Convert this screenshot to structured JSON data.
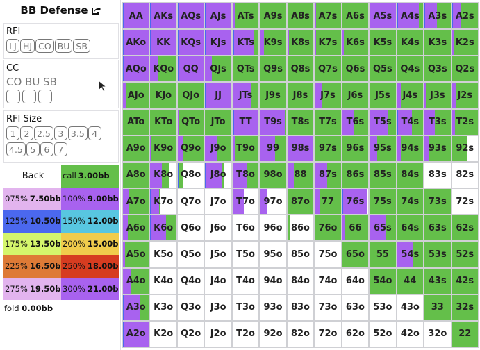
{
  "title": "BB Defense",
  "rfi": {
    "label": "RFI",
    "options": [
      "LJ",
      "HJ",
      "CO",
      "BU",
      "SB"
    ]
  },
  "cc": {
    "label": "CC",
    "positions": "CO BU SB"
  },
  "rfi_size": {
    "label": "RFI Size",
    "options": [
      "1",
      "2",
      "2.5",
      "3",
      "3.5",
      "4",
      "4.5",
      "5",
      "6",
      "7"
    ]
  },
  "legend": {
    "back": "Back",
    "items": [
      {
        "pct": "call",
        "bb": "3.00bb",
        "color": "#64bf4a"
      },
      {
        "pct": "075%",
        "bb": "7.50bb",
        "color": "#e2b4ee"
      },
      {
        "pct": "100%",
        "bb": "9.00bb",
        "color": "#a862ef"
      },
      {
        "pct": "125%",
        "bb": "10.50bb",
        "color": "#4b68ee"
      },
      {
        "pct": "150%",
        "bb": "12.00bb",
        "color": "#58c6e0"
      },
      {
        "pct": "175%",
        "bb": "13.50bb",
        "color": "#d4f56c"
      },
      {
        "pct": "200%",
        "bb": "15.00bb",
        "color": "#f0cc4c"
      },
      {
        "pct": "225%",
        "bb": "16.50bb",
        "color": "#de7a36"
      },
      {
        "pct": "250%",
        "bb": "18.00bb",
        "color": "#d63c20"
      },
      {
        "pct": "275%",
        "bb": "19.50bb",
        "color": "#e2b4ee"
      },
      {
        "pct": "300%",
        "bb": "21.00bb",
        "color": "#a862ef"
      }
    ],
    "fold": {
      "pct": "fold",
      "bb": "0.00bb"
    }
  },
  "colors": {
    "raise_125": "#4b68ee",
    "raise_100": "#a862ef",
    "call": "#64bf4a",
    "fold": "#ffffff"
  },
  "grid_format": "hand, 125% raise %, 100% raise %, call %",
  "grid": [
    [
      [
        "AA",
        3,
        97,
        0
      ],
      [
        "AKs",
        3,
        97,
        0
      ],
      [
        "AQs",
        3,
        97,
        0
      ],
      [
        "AJs",
        2,
        95,
        3
      ],
      [
        "ATs",
        0,
        12,
        88
      ],
      [
        "A9s",
        0,
        0,
        100
      ],
      [
        "A8s",
        0,
        0,
        100
      ],
      [
        "A7s",
        0,
        5,
        95
      ],
      [
        "A6s",
        0,
        0,
        100
      ],
      [
        "A5s",
        3,
        97,
        0
      ],
      [
        "A4s",
        3,
        80,
        17
      ],
      [
        "A3s",
        3,
        45,
        52
      ],
      [
        "A2s",
        3,
        30,
        67
      ]
    ],
    [
      [
        "AKo",
        5,
        95,
        0
      ],
      [
        "KK",
        5,
        95,
        0
      ],
      [
        "KQs",
        3,
        97,
        0
      ],
      [
        "KJs",
        5,
        92,
        3
      ],
      [
        "KTs",
        5,
        75,
        20
      ],
      [
        "K9s",
        0,
        15,
        85
      ],
      [
        "K8s",
        0,
        5,
        95
      ],
      [
        "K7s",
        0,
        5,
        95
      ],
      [
        "K6s",
        0,
        5,
        95
      ],
      [
        "K5s",
        0,
        0,
        100
      ],
      [
        "K4s",
        0,
        0,
        100
      ],
      [
        "K3s",
        0,
        0,
        100
      ],
      [
        "K2s",
        0,
        8,
        92
      ]
    ],
    [
      [
        "AQo",
        5,
        95,
        0
      ],
      [
        "KQo",
        0,
        30,
        70
      ],
      [
        "QQ",
        5,
        95,
        0
      ],
      [
        "QJs",
        0,
        25,
        75
      ],
      [
        "QTs",
        0,
        0,
        100
      ],
      [
        "Q9s",
        0,
        0,
        100
      ],
      [
        "Q8s",
        0,
        0,
        100
      ],
      [
        "Q7s",
        0,
        0,
        100
      ],
      [
        "Q6s",
        0,
        0,
        100
      ],
      [
        "Q5s",
        0,
        0,
        100
      ],
      [
        "Q4s",
        0,
        0,
        100
      ],
      [
        "Q3s",
        0,
        0,
        100
      ],
      [
        "Q2s",
        0,
        0,
        100
      ]
    ],
    [
      [
        "AJo",
        0,
        10,
        90
      ],
      [
        "KJo",
        0,
        0,
        100
      ],
      [
        "QJo",
        0,
        0,
        100
      ],
      [
        "JJ",
        5,
        95,
        0
      ],
      [
        "JTs",
        3,
        70,
        27
      ],
      [
        "J9s",
        0,
        3,
        97
      ],
      [
        "J8s",
        0,
        0,
        100
      ],
      [
        "J7s",
        0,
        25,
        75
      ],
      [
        "J6s",
        0,
        0,
        100
      ],
      [
        "J5s",
        0,
        0,
        100
      ],
      [
        "J4s",
        0,
        15,
        85
      ],
      [
        "J3s",
        0,
        5,
        95
      ],
      [
        "J2s",
        0,
        15,
        85
      ]
    ],
    [
      [
        "ATo",
        0,
        0,
        100
      ],
      [
        "KTo",
        0,
        0,
        100
      ],
      [
        "QTo",
        0,
        3,
        97
      ],
      [
        "JTo",
        0,
        0,
        100
      ],
      [
        "TT",
        5,
        95,
        0
      ],
      [
        "T9s",
        3,
        92,
        5
      ],
      [
        "T8s",
        0,
        3,
        97
      ],
      [
        "T7s",
        0,
        0,
        100
      ],
      [
        "T6s",
        0,
        45,
        55
      ],
      [
        "T5s",
        3,
        70,
        27
      ],
      [
        "T4s",
        3,
        55,
        42
      ],
      [
        "T3s",
        0,
        40,
        60
      ],
      [
        "T2s",
        0,
        12,
        88
      ]
    ],
    [
      [
        "A9o",
        0,
        0,
        100
      ],
      [
        "K9o",
        0,
        3,
        97
      ],
      [
        "Q9o",
        0,
        20,
        80
      ],
      [
        "J9o",
        0,
        45,
        55
      ],
      [
        "T9o",
        0,
        12,
        88
      ],
      [
        "99",
        3,
        55,
        42
      ],
      [
        "98s",
        3,
        97,
        0
      ],
      [
        "97s",
        0,
        0,
        100
      ],
      [
        "96s",
        0,
        0,
        100
      ],
      [
        "95s",
        0,
        30,
        70
      ],
      [
        "94s",
        0,
        15,
        85
      ],
      [
        "93s",
        0,
        15,
        85
      ],
      [
        "92s",
        0,
        0,
        60
      ]
    ],
    [
      [
        "A8o",
        0,
        0,
        100
      ],
      [
        "K8o",
        0,
        45,
        28
      ],
      [
        "Q8o",
        2,
        0,
        20
      ],
      [
        "J8o",
        3,
        60,
        10
      ],
      [
        "T8o",
        3,
        50,
        47
      ],
      [
        "98o",
        0,
        0,
        100
      ],
      [
        "88",
        0,
        25,
        75
      ],
      [
        "87s",
        3,
        45,
        52
      ],
      [
        "86s",
        0,
        0,
        100
      ],
      [
        "85s",
        0,
        0,
        100
      ],
      [
        "84s",
        0,
        0,
        100
      ],
      [
        "83s",
        0,
        0,
        0
      ],
      [
        "82s",
        0,
        0,
        0
      ]
    ],
    [
      [
        "A7o",
        0,
        25,
        75
      ],
      [
        "K7o",
        3,
        30,
        7
      ],
      [
        "Q7o",
        0,
        0,
        0
      ],
      [
        "J7o",
        0,
        0,
        0
      ],
      [
        "T7o",
        3,
        40,
        0
      ],
      [
        "97o",
        0,
        25,
        0
      ],
      [
        "87o",
        0,
        0,
        100
      ],
      [
        "77",
        0,
        20,
        80
      ],
      [
        "76s",
        3,
        95,
        0
      ],
      [
        "75s",
        0,
        0,
        100
      ],
      [
        "74s",
        0,
        0,
        100
      ],
      [
        "73s",
        0,
        0,
        100
      ],
      [
        "72s",
        0,
        0,
        0
      ]
    ],
    [
      [
        "A6o",
        0,
        20,
        80
      ],
      [
        "K6o",
        3,
        57,
        37
      ],
      [
        "Q6o",
        0,
        0,
        0
      ],
      [
        "J6o",
        0,
        0,
        0
      ],
      [
        "T6o",
        0,
        0,
        0
      ],
      [
        "96o",
        0,
        0,
        0
      ],
      [
        "86o",
        0,
        0,
        12
      ],
      [
        "76o",
        0,
        0,
        100
      ],
      [
        "66",
        0,
        10,
        90
      ],
      [
        "65s",
        3,
        57,
        40
      ],
      [
        "64s",
        0,
        0,
        100
      ],
      [
        "63s",
        0,
        0,
        100
      ],
      [
        "62s",
        0,
        0,
        100
      ]
    ],
    [
      [
        "A5o",
        0,
        8,
        92
      ],
      [
        "K5o",
        0,
        0,
        0
      ],
      [
        "Q5o",
        0,
        0,
        0
      ],
      [
        "J5o",
        0,
        0,
        0
      ],
      [
        "T5o",
        0,
        0,
        0
      ],
      [
        "95o",
        0,
        0,
        0
      ],
      [
        "85o",
        0,
        0,
        0
      ],
      [
        "75o",
        0,
        0,
        0
      ],
      [
        "65o",
        0,
        0,
        100
      ],
      [
        "55",
        0,
        0,
        100
      ],
      [
        "54s",
        2,
        58,
        40
      ],
      [
        "53s",
        0,
        0,
        100
      ],
      [
        "52s",
        0,
        0,
        100
      ]
    ],
    [
      [
        "A4o",
        0,
        30,
        70
      ],
      [
        "K4o",
        0,
        0,
        0
      ],
      [
        "Q4o",
        0,
        0,
        0
      ],
      [
        "J4o",
        0,
        0,
        0
      ],
      [
        "T4o",
        0,
        0,
        0
      ],
      [
        "94o",
        0,
        0,
        0
      ],
      [
        "84o",
        0,
        0,
        0
      ],
      [
        "74o",
        0,
        0,
        0
      ],
      [
        "64o",
        0,
        0,
        0
      ],
      [
        "54o",
        0,
        0,
        100
      ],
      [
        "44",
        0,
        0,
        100
      ],
      [
        "43s",
        0,
        0,
        100
      ],
      [
        "42s",
        0,
        0,
        100
      ]
    ],
    [
      [
        "A3o",
        3,
        60,
        37
      ],
      [
        "K3o",
        0,
        0,
        0
      ],
      [
        "Q3o",
        0,
        0,
        0
      ],
      [
        "J3o",
        0,
        0,
        0
      ],
      [
        "T3o",
        0,
        0,
        0
      ],
      [
        "93o",
        0,
        0,
        0
      ],
      [
        "83o",
        0,
        0,
        0
      ],
      [
        "73o",
        0,
        0,
        0
      ],
      [
        "63o",
        0,
        0,
        0
      ],
      [
        "53o",
        0,
        0,
        0
      ],
      [
        "43o",
        0,
        0,
        0
      ],
      [
        "33",
        0,
        0,
        100
      ],
      [
        "32s",
        0,
        0,
        100
      ]
    ],
    [
      [
        "A2o",
        5,
        95,
        0
      ],
      [
        "K2o",
        0,
        0,
        0
      ],
      [
        "Q2o",
        0,
        0,
        0
      ],
      [
        "J2o",
        0,
        0,
        0
      ],
      [
        "T2o",
        0,
        0,
        0
      ],
      [
        "92o",
        0,
        0,
        0
      ],
      [
        "82o",
        0,
        0,
        0
      ],
      [
        "72o",
        0,
        0,
        0
      ],
      [
        "62o",
        0,
        0,
        0
      ],
      [
        "52o",
        0,
        0,
        0
      ],
      [
        "42o",
        0,
        0,
        0
      ],
      [
        "32o",
        0,
        0,
        0
      ],
      [
        "22",
        0,
        0,
        100
      ]
    ]
  ]
}
